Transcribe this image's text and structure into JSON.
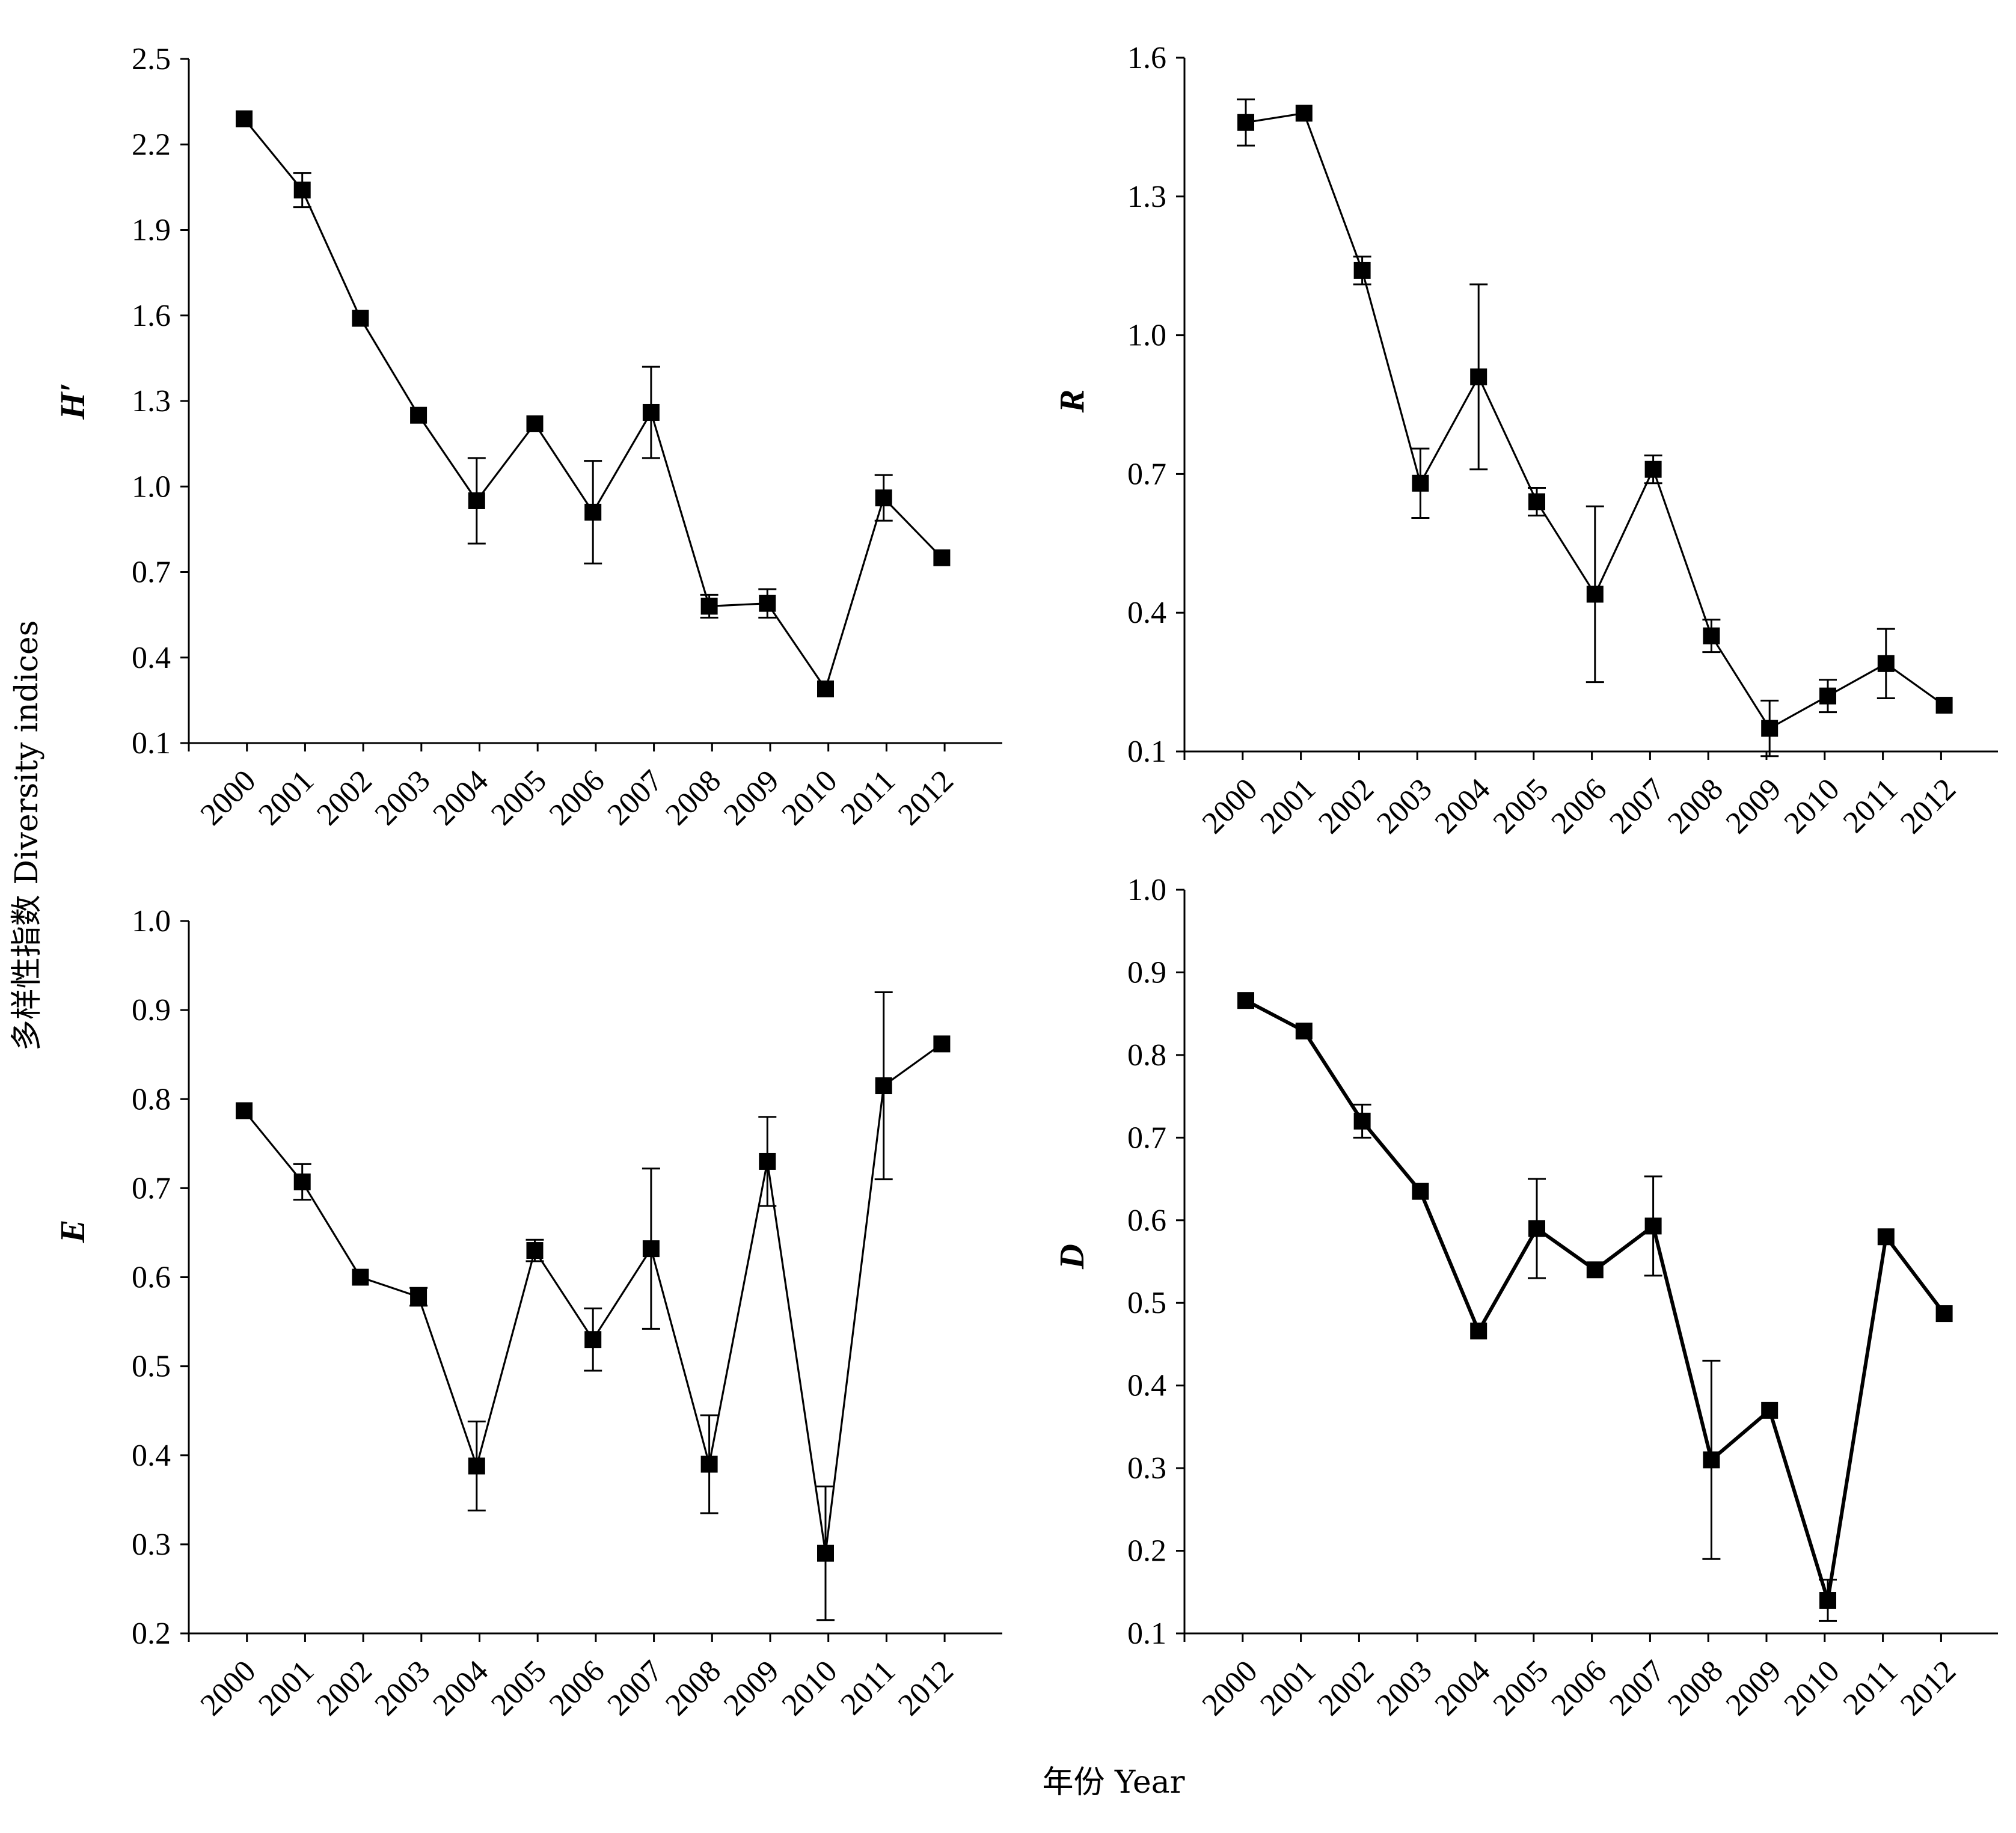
{
  "figure": {
    "ylabel": "多样性指数 Diversity indices",
    "xlabel": "年份 Year"
  },
  "chart_data": [
    {
      "type": "line",
      "ylabel": "H′",
      "categories": [
        "2000",
        "2001",
        "2002",
        "2003",
        "2004",
        "2005",
        "2006",
        "2007",
        "2008",
        "2009",
        "2010",
        "2011",
        "2012"
      ],
      "series": [
        {
          "values": [
            2.29,
            2.04,
            1.59,
            1.25,
            0.95,
            1.22,
            0.91,
            1.26,
            0.58,
            0.59,
            0.29,
            0.96,
            0.75
          ],
          "errors": [
            0,
            0.06,
            0,
            0,
            0.15,
            0,
            0.18,
            0.16,
            0.04,
            0.05,
            0,
            0.08,
            0
          ]
        }
      ],
      "ylim": [
        0.1,
        2.5
      ],
      "yticks": [
        "0.1",
        "0.4",
        "0.7",
        "1.0",
        "1.3",
        "1.6",
        "1.9",
        "2.2",
        "2.5"
      ],
      "grid": false,
      "marker": "square",
      "color": "#000000"
    },
    {
      "type": "line",
      "ylabel": "R",
      "categories": [
        "2000",
        "2001",
        "2002",
        "2003",
        "2004",
        "2005",
        "2006",
        "2007",
        "2008",
        "2009",
        "2010",
        "2011",
        "2012"
      ],
      "series": [
        {
          "values": [
            1.46,
            1.48,
            1.14,
            0.68,
            0.91,
            0.64,
            0.44,
            0.71,
            0.35,
            0.15,
            0.22,
            0.29,
            0.2
          ],
          "errors": [
            0.05,
            0,
            0.03,
            0.075,
            0.2,
            0.03,
            0.19,
            0.03,
            0.035,
            0.06,
            0.035,
            0.075,
            0
          ]
        }
      ],
      "ylim": [
        0.1,
        1.6
      ],
      "yticks": [
        "0.1",
        "0.4",
        "0.7",
        "1.0",
        "1.3",
        "1.6"
      ],
      "grid": false,
      "marker": "square",
      "color": "#000000"
    },
    {
      "type": "line",
      "ylabel": "E",
      "categories": [
        "2000",
        "2001",
        "2002",
        "2003",
        "2004",
        "2005",
        "2006",
        "2007",
        "2008",
        "2009",
        "2010",
        "2011",
        "2012"
      ],
      "series": [
        {
          "values": [
            0.787,
            0.707,
            0.6,
            0.578,
            0.388,
            0.63,
            0.53,
            0.632,
            0.39,
            0.73,
            0.29,
            0.815,
            0.862
          ],
          "errors": [
            0,
            0.02,
            0,
            0.01,
            0.05,
            0.012,
            0.035,
            0.09,
            0.055,
            0.05,
            0.075,
            0.105,
            0
          ]
        }
      ],
      "ylim": [
        0.2,
        1.0
      ],
      "yticks": [
        "0.2",
        "0.3",
        "0.4",
        "0.5",
        "0.6",
        "0.7",
        "0.8",
        "0.9",
        "1.0"
      ],
      "grid": false,
      "marker": "square",
      "color": "#000000"
    },
    {
      "type": "line",
      "ylabel": "D",
      "categories": [
        "2000",
        "2001",
        "2002",
        "2003",
        "2004",
        "2005",
        "2006",
        "2007",
        "2008",
        "2009",
        "2010",
        "2011",
        "2012"
      ],
      "series": [
        {
          "values": [
            0.866,
            0.829,
            0.72,
            0.635,
            0.466,
            0.59,
            0.54,
            0.593,
            0.31,
            0.37,
            0.14,
            0.58,
            0.487
          ],
          "errors": [
            0,
            0,
            0.02,
            0,
            0,
            0.06,
            0,
            0.06,
            0.12,
            0,
            0.025,
            0,
            0
          ]
        }
      ],
      "ylim": [
        0.1,
        1.0
      ],
      "yticks": [
        "0.1",
        "0.2",
        "0.3",
        "0.4",
        "0.5",
        "0.6",
        "0.7",
        "0.8",
        "0.9",
        "1.0"
      ],
      "grid": false,
      "marker": "square",
      "color": "#000000"
    }
  ]
}
